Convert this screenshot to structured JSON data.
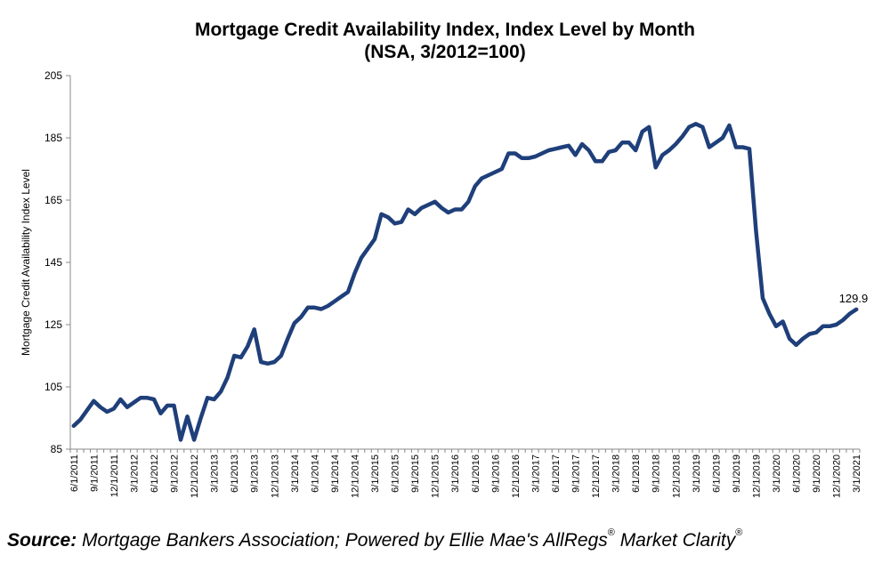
{
  "chart_data": {
    "type": "line",
    "title": "Mortgage Credit Availability Index, Index Level by Month",
    "subtitle": "(NSA, 3/2012=100)",
    "ylabel": "Mortgage Credit Availability Index Level",
    "xlabel": "",
    "ylim": [
      85,
      205
    ],
    "yticks": [
      85,
      105,
      125,
      145,
      165,
      185,
      205
    ],
    "x_tick_labels": [
      "6/1/2011",
      "9/1/2011",
      "12/1/2011",
      "3/1/2012",
      "6/1/2012",
      "9/1/2012",
      "12/1/2012",
      "3/1/2013",
      "6/1/2013",
      "9/1/2013",
      "12/1/2013",
      "3/1/2014",
      "6/1/2014",
      "9/1/2014",
      "12/1/2014",
      "3/1/2015",
      "6/1/2015",
      "9/1/2015",
      "12/1/2015",
      "3/1/2016",
      "6/1/2016",
      "9/1/2016",
      "12/1/2016",
      "3/1/2017",
      "6/1/2017",
      "9/1/2017",
      "12/1/2017",
      "3/1/2018",
      "6/1/2018",
      "9/1/2018",
      "12/1/2018",
      "3/1/2019",
      "6/1/2019",
      "9/1/2019",
      "12/1/2019",
      "3/1/2020",
      "6/1/2020",
      "9/1/2020",
      "12/1/2020",
      "3/1/2021"
    ],
    "x_start": "6/1/2011",
    "x_end": "5/1/2021",
    "series": [
      {
        "name": "",
        "color": "#1f3f7a",
        "values": [
          92.5,
          94.5,
          97.5,
          100.5,
          98.5,
          97,
          98,
          101,
          98.5,
          100,
          101.5,
          101.5,
          101,
          96.5,
          99,
          99,
          88,
          95.5,
          88,
          95,
          101.5,
          101,
          103.5,
          108,
          115,
          114.5,
          118,
          123.5,
          113,
          112.5,
          113,
          115,
          120.5,
          125.5,
          127.5,
          130.5,
          130.5,
          130,
          131,
          132.5,
          134,
          135.5,
          141.5,
          146.5,
          149.5,
          152.5,
          160.5,
          159.5,
          157.5,
          158,
          162,
          160.5,
          162.5,
          163.5,
          164.5,
          162.5,
          161,
          162,
          162,
          164.5,
          169.5,
          172,
          173,
          174,
          175,
          180,
          180,
          178.5,
          178.5,
          179,
          180,
          181,
          181.5,
          182,
          182.5,
          179.5,
          183,
          181,
          177.5,
          177.5,
          180.5,
          181,
          183.5,
          183.5,
          181,
          187,
          188.5,
          175.5,
          179.5,
          181,
          183,
          185.5,
          188.5,
          189.5,
          188.5,
          182,
          183.5,
          185,
          189,
          182,
          182,
          181.5,
          155,
          133.5,
          128.5,
          124.5,
          126,
          120.5,
          118.5,
          120.5,
          122,
          122.5,
          124.5,
          124.5,
          125,
          126.5,
          128.5,
          129.9
        ]
      }
    ],
    "annotations": [
      {
        "text": "129.9"
      }
    ]
  },
  "source": {
    "lead": "Source:",
    "text": " Mortgage Bankers Association; Powered by Ellie Mae's AllRegs",
    "reg1": "®",
    "text2": " Market Clarity",
    "reg2": "®"
  }
}
